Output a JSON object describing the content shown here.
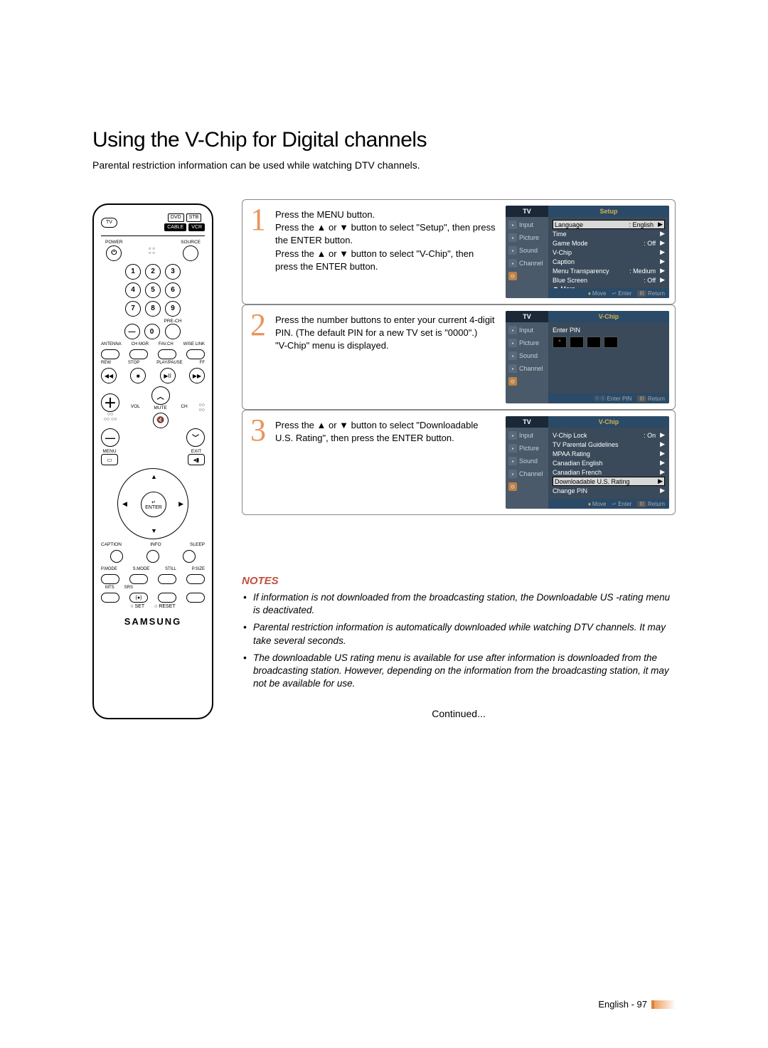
{
  "page": {
    "title": "Using the V-Chip for Digital channels",
    "subtitle": "Parental restriction information can be used while watching DTV channels.",
    "continued": "Continued...",
    "footer_lang": "English - 97"
  },
  "remote": {
    "top_boxes_r1": [
      "DVD",
      "STB"
    ],
    "top_boxes_r2": [
      "CABLE",
      "VCR"
    ],
    "tv_label": "TV",
    "power": "POWER",
    "source": "SOURCE",
    "numbers": [
      "1",
      "2",
      "3",
      "4",
      "5",
      "6",
      "7",
      "8",
      "9",
      "0"
    ],
    "prech": "PRE-CH",
    "dash": "—",
    "bottom_row_labels": [
      "ANTENNA",
      "CH MGR",
      "FAV.CH",
      "WISE LINK"
    ],
    "playback_labels": [
      "REW",
      "STOP",
      "PLAY/PAUSE",
      "FF"
    ],
    "vol": "VOL",
    "ch": "CH",
    "mute": "MUTE",
    "plus": "＋",
    "up_ch": "︿",
    "down_ch": "﹀",
    "minus": "—",
    "menu": "MENU",
    "exit": "EXIT",
    "enter": "ENTER",
    "caption_info_sleep": [
      "CAPTION",
      "INFO",
      "SLEEP"
    ],
    "pmode_row": [
      "P.MODE",
      "S.MODE",
      "STILL",
      "P.SIZE"
    ],
    "mts_srs": [
      "MTS",
      "SRS"
    ],
    "set_reset": [
      "SET",
      "RESET"
    ],
    "brand": "SAMSUNG"
  },
  "steps": [
    {
      "num": "1",
      "text_lines": [
        "Press the MENU button.",
        "Press the ▲ or ▼ button to select \"Setup\", then press the ENTER button.",
        "Press the ▲ or ▼ button to select \"V-Chip\", then press the ENTER button."
      ],
      "osd": {
        "tv": "TV",
        "title": "Setup",
        "sidebar": [
          "Input",
          "Picture",
          "Sound",
          "Channel"
        ],
        "rows": [
          {
            "label": "Language",
            "value": ": English",
            "sel": true
          },
          {
            "label": "Time",
            "value": ""
          },
          {
            "label": "Game Mode",
            "value": ": Off"
          },
          {
            "label": "V-Chip",
            "value": ""
          },
          {
            "label": "Caption",
            "value": ""
          },
          {
            "label": "Menu Transparency",
            "value": ": Medium"
          },
          {
            "label": "Blue Screen",
            "value": ": Off"
          },
          {
            "label": "▼ More",
            "value": "",
            "noarrow": true
          }
        ],
        "footer": [
          "Move",
          "Enter",
          "Return"
        ],
        "footer_style": "move"
      }
    },
    {
      "num": "2",
      "text_lines": [
        "Press the number buttons to enter your current 4-digit PIN. (The default PIN for a new TV set is \"0000\".)",
        "\"V-Chip\" menu is displayed."
      ],
      "osd": {
        "tv": "TV",
        "title": "V-Chip",
        "sidebar": [
          "Input",
          "Picture",
          "Sound",
          "Channel"
        ],
        "enter_pin": "Enter PIN",
        "pin": [
          "*",
          "",
          "",
          ""
        ],
        "footer": [
          "Enter PIN",
          "Return"
        ],
        "footer_style": "pin"
      }
    },
    {
      "num": "3",
      "text_lines": [
        "Press the ▲ or ▼ button to select \"Downloadable U.S. Rating\", then press the ENTER button."
      ],
      "osd": {
        "tv": "TV",
        "title": "V-Chip",
        "sidebar": [
          "Input",
          "Picture",
          "Sound",
          "Channel"
        ],
        "rows": [
          {
            "label": "V-Chip Lock",
            "value": ": On"
          },
          {
            "label": "TV Parental Guidelines",
            "value": ""
          },
          {
            "label": "MPAA Rating",
            "value": ""
          },
          {
            "label": "Canadian English",
            "value": ""
          },
          {
            "label": "Canadian French",
            "value": ""
          },
          {
            "label": "Downloadable U.S. Rating",
            "value": "",
            "sel": true
          },
          {
            "label": "Change PIN",
            "value": ""
          }
        ],
        "footer": [
          "Move",
          "Enter",
          "Return"
        ],
        "footer_style": "move"
      }
    }
  ],
  "notes": {
    "heading": "NOTES",
    "items": [
      "If information is not downloaded from the broadcasting station, the Downloadable US -rating menu is deactivated.",
      "Parental restriction information is automatically downloaded while watching DTV channels. It may take several seconds.",
      "The downloadable US rating menu is available for use after information is downloaded from the broadcasting station. However, depending on the information from the broadcasting station, it may not be available for use."
    ]
  },
  "colors": {
    "step_num": "#e8955e",
    "notes_heading": "#c05040",
    "osd_bg": "#4a5a6a",
    "osd_titlebar_right": "#2a4a68",
    "osd_title_text": "#d4b050"
  }
}
